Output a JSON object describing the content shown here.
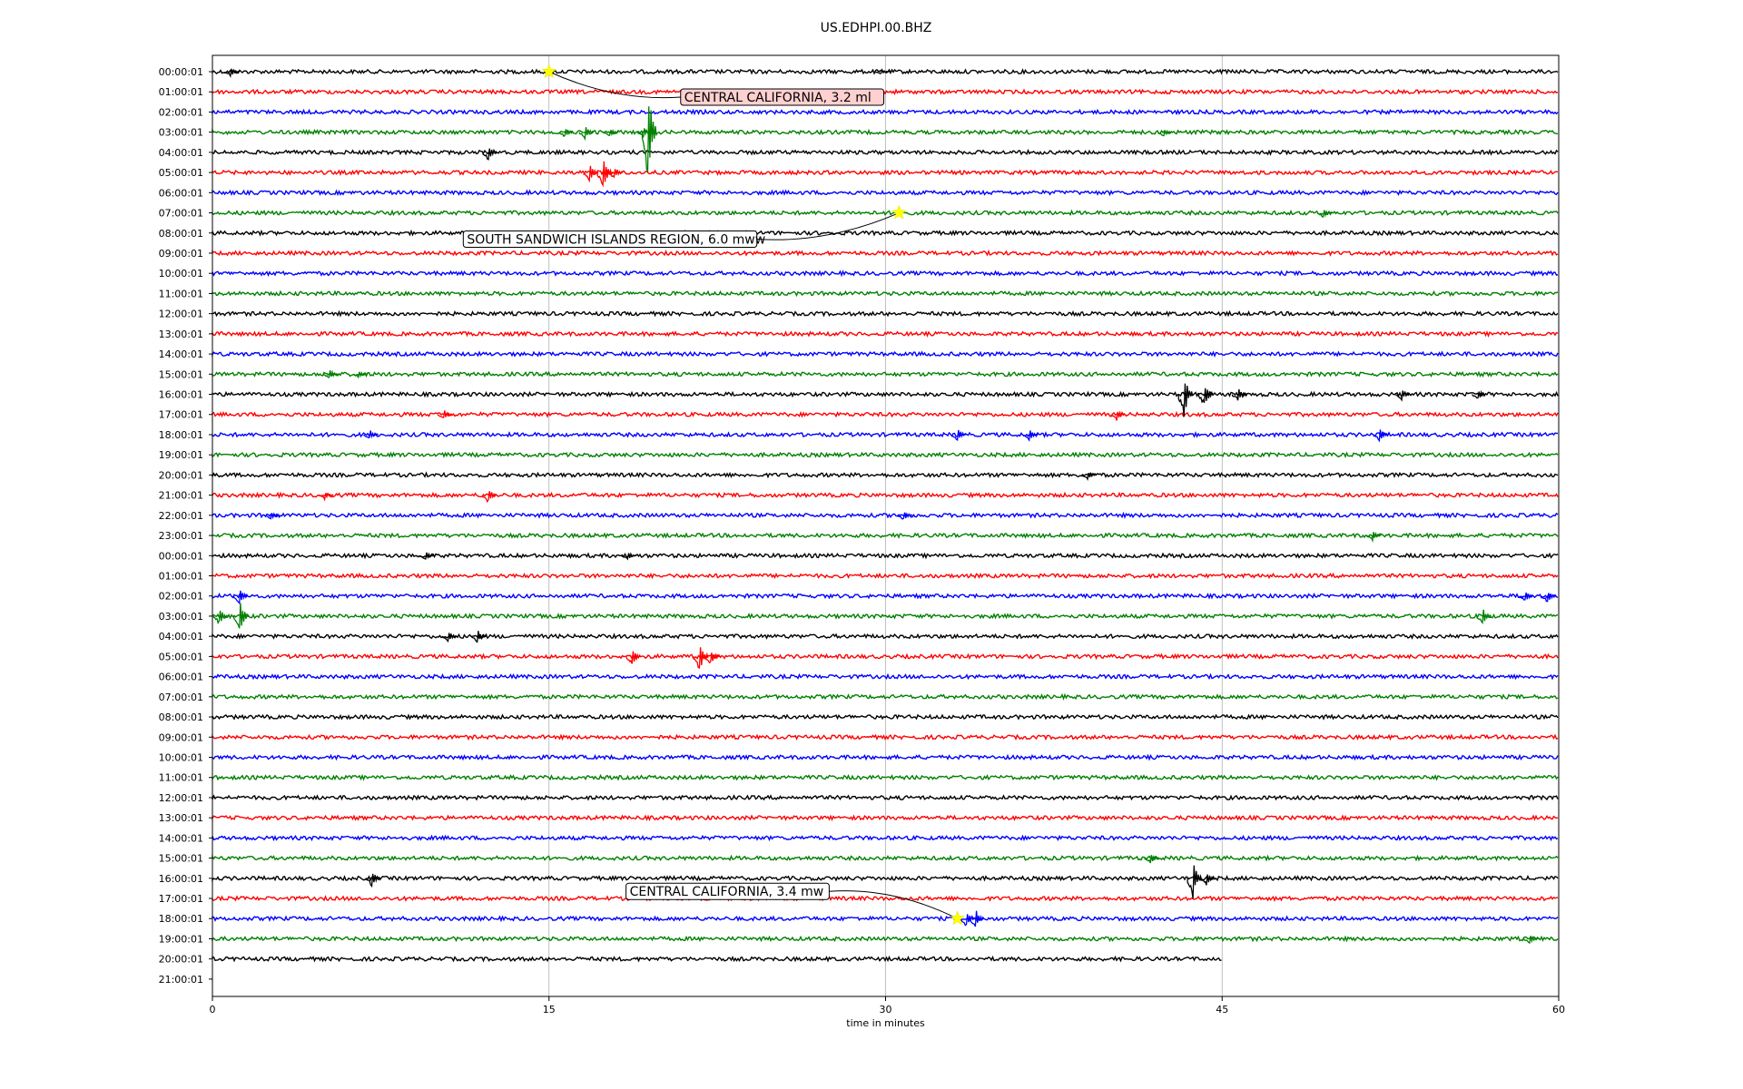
{
  "chart_data": {
    "type": "line",
    "title": "US.EDHPI.00.BHZ",
    "xlabel": "time in minutes",
    "xlim": [
      0,
      60
    ],
    "x_ticks": [
      "0",
      "15",
      "30",
      "45",
      "60"
    ],
    "x_tick_values": [
      0,
      15,
      30,
      45,
      60
    ],
    "grid": "vertical",
    "colors": [
      "#000000",
      "#ff0000",
      "#0000ff",
      "#008000"
    ],
    "rows": [
      "00:00:01",
      "01:00:01",
      "02:00:01",
      "03:00:01",
      "04:00:01",
      "05:00:01",
      "06:00:01",
      "07:00:01",
      "08:00:01",
      "09:00:01",
      "10:00:01",
      "11:00:01",
      "12:00:01",
      "13:00:01",
      "14:00:01",
      "15:00:01",
      "16:00:01",
      "17:00:01",
      "18:00:01",
      "19:00:01",
      "20:00:01",
      "21:00:01",
      "22:00:01",
      "23:00:01",
      "00:00:01",
      "01:00:01",
      "02:00:01",
      "03:00:01",
      "04:00:01",
      "05:00:01",
      "06:00:01",
      "07:00:01",
      "08:00:01",
      "09:00:01",
      "10:00:01",
      "11:00:01",
      "12:00:01",
      "13:00:01",
      "14:00:01",
      "15:00:01",
      "16:00:01",
      "17:00:01",
      "18:00:01",
      "19:00:01",
      "20:00:01",
      "21:00:01"
    ],
    "last_row_end_minute": 45,
    "spikes": [
      {
        "row": 0,
        "minute": 0.8,
        "amp": 6
      },
      {
        "row": 0,
        "minute": 29.8,
        "amp": 3
      },
      {
        "row": 3,
        "minute": 15.7,
        "amp": 6
      },
      {
        "row": 3,
        "minute": 16.6,
        "amp": 8
      },
      {
        "row": 3,
        "minute": 17.7,
        "amp": 5
      },
      {
        "row": 3,
        "minute": 19.2,
        "amp": 6
      },
      {
        "row": 3,
        "minute": 19.4,
        "amp": 60
      },
      {
        "row": 3,
        "minute": 42.4,
        "amp": 6
      },
      {
        "row": 4,
        "minute": 12.3,
        "amp": 10
      },
      {
        "row": 5,
        "minute": 16.8,
        "amp": 10
      },
      {
        "row": 5,
        "minute": 17.4,
        "amp": 20
      },
      {
        "row": 5,
        "minute": 17.9,
        "amp": 8
      },
      {
        "row": 7,
        "minute": 49.5,
        "amp": 6
      },
      {
        "row": 15,
        "minute": 5.2,
        "amp": 6
      },
      {
        "row": 15,
        "minute": 6.5,
        "amp": 4
      },
      {
        "row": 16,
        "minute": 43.3,
        "amp": 26
      },
      {
        "row": 16,
        "minute": 44.2,
        "amp": 16
      },
      {
        "row": 16,
        "minute": 45.7,
        "amp": 8
      },
      {
        "row": 16,
        "minute": 53.0,
        "amp": 8
      },
      {
        "row": 16,
        "minute": 56.4,
        "amp": 6
      },
      {
        "row": 17,
        "minute": 10.3,
        "amp": 6
      },
      {
        "row": 17,
        "minute": 40.3,
        "amp": 7
      },
      {
        "row": 18,
        "minute": 7.0,
        "amp": 6
      },
      {
        "row": 18,
        "minute": 33.2,
        "amp": 8
      },
      {
        "row": 18,
        "minute": 36.4,
        "amp": 7
      },
      {
        "row": 18,
        "minute": 52.0,
        "amp": 8
      },
      {
        "row": 20,
        "minute": 39.0,
        "amp": 6
      },
      {
        "row": 21,
        "minute": 12.3,
        "amp": 10
      },
      {
        "row": 21,
        "minute": 5.0,
        "amp": 5
      },
      {
        "row": 22,
        "minute": 2.6,
        "amp": 5
      },
      {
        "row": 22,
        "minute": 30.8,
        "amp": 6
      },
      {
        "row": 23,
        "minute": 51.7,
        "amp": 6
      },
      {
        "row": 24,
        "minute": 9.5,
        "amp": 5
      },
      {
        "row": 24,
        "minute": 18.5,
        "amp": 5
      },
      {
        "row": 26,
        "minute": 1.2,
        "amp": 10
      },
      {
        "row": 26,
        "minute": 58.5,
        "amp": 8
      },
      {
        "row": 26,
        "minute": 59.5,
        "amp": 8
      },
      {
        "row": 27,
        "minute": 0.3,
        "amp": 10
      },
      {
        "row": 27,
        "minute": 1.2,
        "amp": 22
      },
      {
        "row": 27,
        "minute": 56.6,
        "amp": 10
      },
      {
        "row": 28,
        "minute": 10.5,
        "amp": 6
      },
      {
        "row": 28,
        "minute": 11.8,
        "amp": 8
      },
      {
        "row": 29,
        "minute": 18.7,
        "amp": 12
      },
      {
        "row": 29,
        "minute": 21.7,
        "amp": 20
      },
      {
        "row": 29,
        "minute": 22.2,
        "amp": 10
      },
      {
        "row": 39,
        "minute": 41.8,
        "amp": 6
      },
      {
        "row": 40,
        "minute": 7.1,
        "amp": 10
      },
      {
        "row": 40,
        "minute": 43.7,
        "amp": 24
      },
      {
        "row": 40,
        "minute": 44.3,
        "amp": 8
      },
      {
        "row": 42,
        "minute": 33.6,
        "amp": 10
      },
      {
        "row": 42,
        "minute": 34.0,
        "amp": 12
      },
      {
        "row": 43,
        "minute": 58.7,
        "amp": 6
      }
    ],
    "annotations": [
      {
        "text": "CENTRAL CALIFORNIA, 3.2 ml",
        "row": 0,
        "minute": 15.0,
        "highlight": true
      },
      {
        "text": "SOUTH SANDWICH ISLANDS REGION, 6.0 mww",
        "row": 7,
        "minute": 30.6,
        "highlight": false
      },
      {
        "text": "CENTRAL CALIFORNIA, 3.4 mw",
        "row": 42,
        "minute": 33.2,
        "highlight": false
      }
    ]
  }
}
